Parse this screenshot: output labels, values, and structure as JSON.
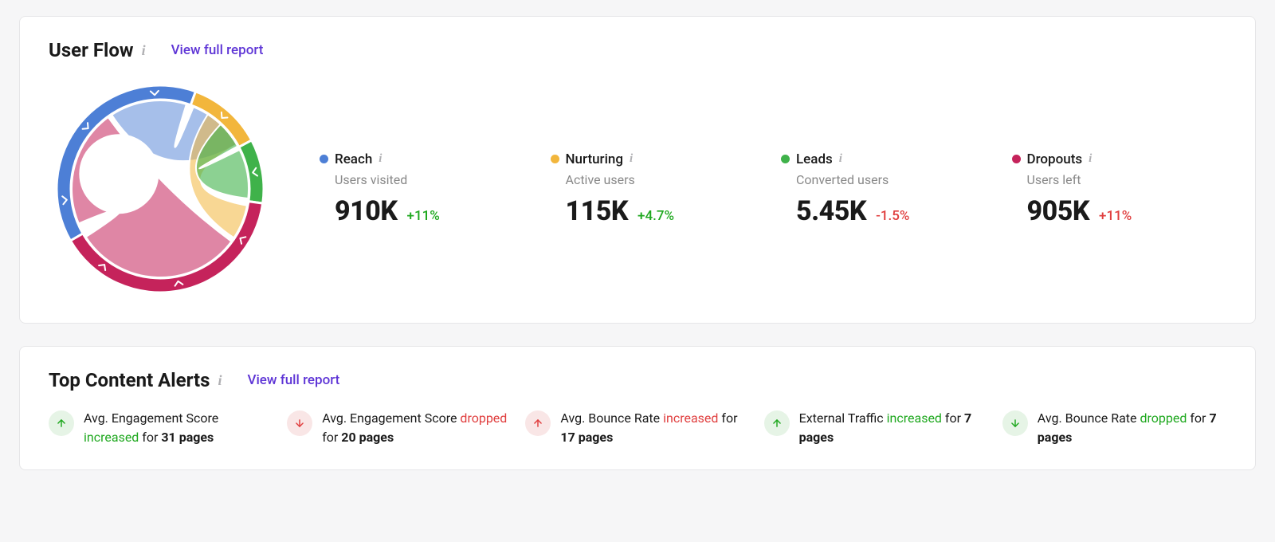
{
  "colors": {
    "link": "#5e35d6",
    "positive": "#1fa81f",
    "negative": "#e03e3e",
    "info_icon": "#b0b0b3",
    "card_bg": "#ffffff",
    "card_border": "#e6e6e8",
    "page_bg": "#f6f6f7"
  },
  "user_flow": {
    "title": "User Flow",
    "link_label": "View full report",
    "chord": {
      "type": "chord",
      "outer_radius": 130,
      "inner_radius": 112,
      "background": "#ffffff",
      "arcs": [
        {
          "name": "reach",
          "color": "#4d7fd6",
          "start_deg": -120,
          "end_deg": 20
        },
        {
          "name": "nurturing",
          "color": "#f2b63c",
          "start_deg": 20,
          "end_deg": 62
        },
        {
          "name": "leads",
          "color": "#3fb24a",
          "start_deg": 62,
          "end_deg": 98
        },
        {
          "name": "dropouts",
          "color": "#c5235b",
          "start_deg": 98,
          "end_deg": 240
        }
      ],
      "ribbons": [
        {
          "from": "reach",
          "to": "dropouts",
          "color": "#c5235b",
          "opacity": 0.55
        },
        {
          "from": "reach",
          "to": "nurturing",
          "color": "#4d7fd6",
          "opacity": 0.5
        },
        {
          "from": "nurturing",
          "to": "dropouts",
          "color": "#f2b63c",
          "opacity": 0.55
        },
        {
          "from": "nurturing",
          "to": "leads",
          "color": "#3fb24a",
          "opacity": 0.6
        }
      ],
      "chevron_color": "#ffffff"
    },
    "metrics": [
      {
        "key": "reach",
        "label": "Reach",
        "sub": "Users visited",
        "value": "910K",
        "delta": "+11%",
        "delta_dir": "pos",
        "dot_color": "#4d7fd6"
      },
      {
        "key": "nurturing",
        "label": "Nurturing",
        "sub": "Active users",
        "value": "115K",
        "delta": "+4.7%",
        "delta_dir": "pos",
        "dot_color": "#f2b63c"
      },
      {
        "key": "leads",
        "label": "Leads",
        "sub": "Converted users",
        "value": "5.45K",
        "delta": "-1.5%",
        "delta_dir": "neg",
        "dot_color": "#3fb24a"
      },
      {
        "key": "dropouts",
        "label": "Dropouts",
        "sub": "Users left",
        "value": "905K",
        "delta": "+11%",
        "delta_dir": "neg",
        "dot_color": "#c5235b"
      }
    ]
  },
  "alerts": {
    "title": "Top Content Alerts",
    "link_label": "View full report",
    "icon_bg_up": "#e6f4e6",
    "icon_bg_down": "#f9e6e6",
    "items": [
      {
        "metric": "Avg. Engagement Score",
        "verb": "increased",
        "verb_tone": "pos",
        "count": "31 pages",
        "arrow": "up",
        "arrow_tone": "pos"
      },
      {
        "metric": "Avg. Engagement Score",
        "verb": "dropped",
        "verb_tone": "neg",
        "count": "20 pages",
        "arrow": "down",
        "arrow_tone": "neg"
      },
      {
        "metric": "Avg. Bounce Rate",
        "verb": "increased",
        "verb_tone": "neg",
        "count": "17 pages",
        "arrow": "up",
        "arrow_tone": "neg"
      },
      {
        "metric": "External Traffic",
        "verb": "increased",
        "verb_tone": "pos",
        "count": "7 pages",
        "arrow": "up",
        "arrow_tone": "pos"
      },
      {
        "metric": "Avg. Bounce Rate",
        "verb": "dropped",
        "verb_tone": "pos",
        "count": "7 pages",
        "arrow": "down",
        "arrow_tone": "pos"
      }
    ]
  }
}
